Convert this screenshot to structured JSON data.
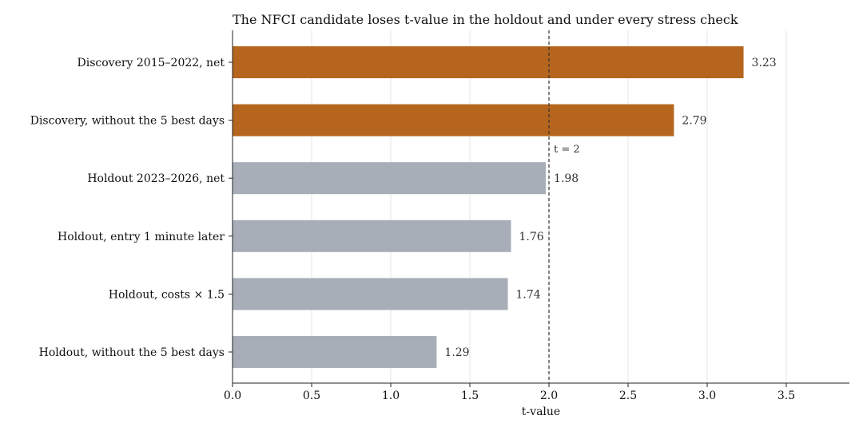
{
  "chart_data": {
    "type": "bar",
    "orientation": "horizontal",
    "title": "The NFCI candidate loses t-value in the holdout and under every stress check",
    "xlabel": "t-value",
    "ylabel": "",
    "xlim": [
      0,
      3.9
    ],
    "xticks": [
      "0.0",
      "0.5",
      "1.0",
      "1.5",
      "2.0",
      "2.5",
      "3.0",
      "3.5"
    ],
    "grid": "vertical",
    "categories": [
      "Discovery 2015–2022, net",
      "Discovery, without the 5 best days",
      "Holdout 2023–2026, net",
      "Holdout, entry 1 minute later",
      "Holdout, costs × 1.5",
      "Holdout, without the 5 best days"
    ],
    "values": [
      3.23,
      2.79,
      1.98,
      1.76,
      1.74,
      1.29
    ],
    "value_labels": [
      "3.23",
      "2.79",
      "1.98",
      "1.76",
      "1.74",
      "1.29"
    ],
    "groups": [
      "discovery",
      "discovery",
      "holdout",
      "holdout",
      "holdout",
      "holdout"
    ],
    "colors": {
      "discovery": "#b5651d",
      "holdout": "#a8aeb7"
    },
    "reference_line": {
      "value": 2.0,
      "label": "t = 2",
      "style": "dashed"
    }
  }
}
